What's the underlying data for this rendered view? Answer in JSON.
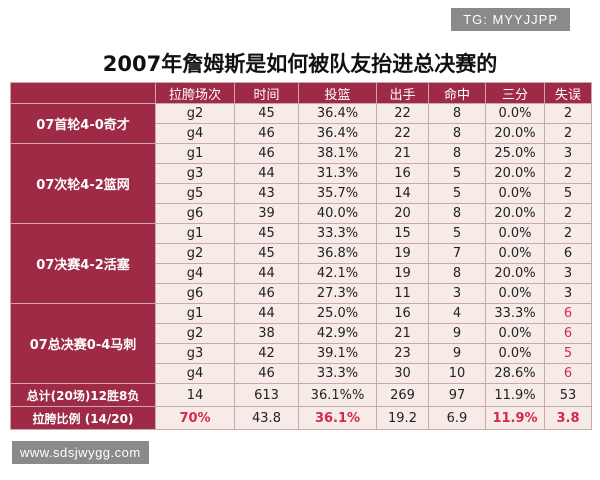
{
  "watermark_top": "TG: MYYJJPP",
  "title": "2007年詹姆斯是如何被队友抬进总决赛的",
  "headers": [
    "拉胯场次",
    "时间",
    "投篮",
    "出手",
    "命中",
    "三分",
    "失误"
  ],
  "groups": [
    {
      "label": "07首轮4-0奇才",
      "rows": [
        [
          "g2",
          "45",
          "36.4%",
          "22",
          "8",
          "0.0%",
          "2"
        ],
        [
          "g4",
          "46",
          "36.4%",
          "22",
          "8",
          "20.0%",
          "2"
        ]
      ]
    },
    {
      "label": "07次轮4-2篮网",
      "rows": [
        [
          "g1",
          "46",
          "38.1%",
          "21",
          "8",
          "25.0%",
          "3"
        ],
        [
          "g3",
          "44",
          "31.3%",
          "16",
          "5",
          "20.0%",
          "2"
        ],
        [
          "g5",
          "43",
          "35.7%",
          "14",
          "5",
          "0.0%",
          "5"
        ],
        [
          "g6",
          "39",
          "40.0%",
          "20",
          "8",
          "20.0%",
          "2"
        ]
      ]
    },
    {
      "label": "07决赛4-2活塞",
      "rows": [
        [
          "g1",
          "45",
          "33.3%",
          "15",
          "5",
          "0.0%",
          "2"
        ],
        [
          "g2",
          "45",
          "36.8%",
          "19",
          "7",
          "0.0%",
          "6"
        ],
        [
          "g4",
          "44",
          "42.1%",
          "19",
          "8",
          "20.0%",
          "3"
        ],
        [
          "g6",
          "46",
          "27.3%",
          "11",
          "3",
          "0.0%",
          "3"
        ]
      ]
    },
    {
      "label": "07总决赛0-4马刺",
      "rows": [
        [
          "g1",
          "44",
          "25.0%",
          "16",
          "4",
          "33.3%",
          "6"
        ],
        [
          "g2",
          "38",
          "42.9%",
          "21",
          "9",
          "0.0%",
          "6"
        ],
        [
          "g3",
          "42",
          "39.1%",
          "23",
          "9",
          "0.0%",
          "5"
        ],
        [
          "g4",
          "46",
          "33.3%",
          "30",
          "10",
          "28.6%",
          "6"
        ]
      ]
    }
  ],
  "total": {
    "label": "总计(20场)12胜8负",
    "values": [
      "14",
      "613",
      "36.1%%",
      "269",
      "97",
      "11.9%",
      "53"
    ]
  },
  "ratio": {
    "label": "拉胯比例 (14/20)",
    "values": [
      "70%",
      "43.8",
      "36.1%",
      "19.2",
      "6.9",
      "11.9%",
      "3.8"
    ]
  },
  "watermark_bottom": "www.sdsjwygg.com",
  "colors": {
    "header_bg": "#9e2a45",
    "cell_bg": "#f6ebe6",
    "highlight": "#d6284a"
  }
}
